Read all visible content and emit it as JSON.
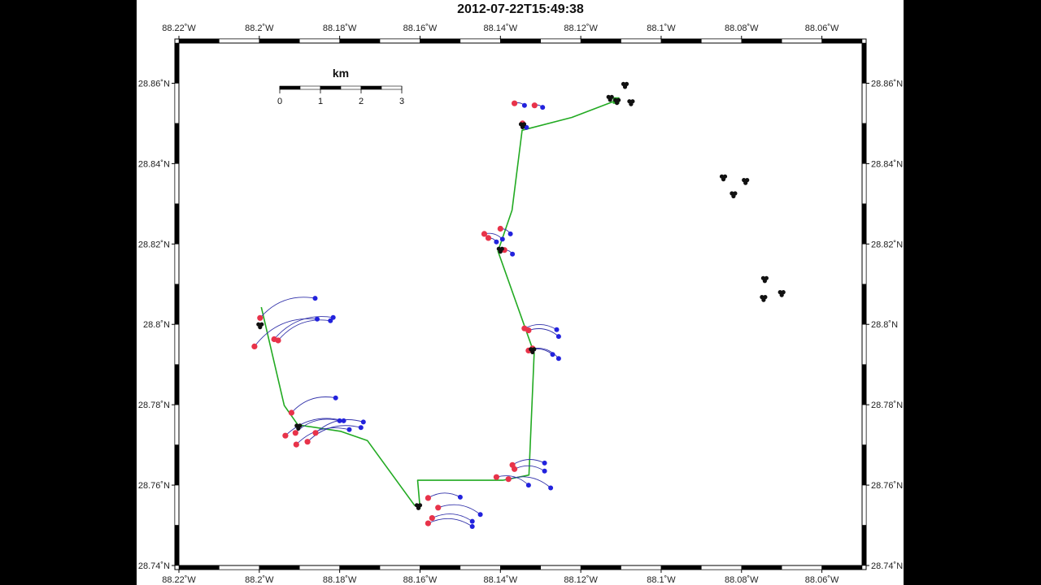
{
  "chart_data": {
    "type": "map",
    "title": "2012-07-22T15:49:38",
    "xlim": [
      -88.22,
      -88.05
    ],
    "ylim": [
      28.74,
      28.87
    ],
    "x_ticks": [
      -88.22,
      -88.2,
      -88.18,
      -88.16,
      -88.14,
      -88.12,
      -88.1,
      -88.08,
      -88.06
    ],
    "y_ticks": [
      28.74,
      28.76,
      28.78,
      28.8,
      28.82,
      28.84,
      28.86
    ],
    "x_tick_labels": [
      "88.22˚W",
      "88.2˚W",
      "88.18˚W",
      "88.16˚W",
      "88.14˚W",
      "88.12˚W",
      "88.1˚W",
      "88.08˚W",
      "88.06˚W"
    ],
    "y_tick_labels": [
      "28.74˚N",
      "28.76˚N",
      "28.78˚N",
      "28.8˚N",
      "28.82˚N",
      "28.84˚N",
      "28.86˚N"
    ],
    "scalebar": {
      "unit": "km",
      "labels": [
        "0",
        "1",
        "2",
        "3"
      ]
    },
    "colors": {
      "ship_track": "#22aa22",
      "drifter_track": "#3333aa",
      "drifter_start": "#e8334a",
      "drifter_end": "#2222dd",
      "undeployed": "#111111"
    },
    "ship_track": [
      [
        -88.1112,
        28.8557
      ],
      [
        -88.1222,
        28.8515
      ],
      [
        -88.1346,
        28.8483
      ],
      [
        -88.1371,
        28.8284
      ],
      [
        -88.1406,
        28.8182
      ],
      [
        -88.1316,
        28.7928
      ],
      [
        -88.1329,
        28.7625
      ],
      [
        -88.1394,
        28.7612
      ],
      [
        -88.1606,
        28.7612
      ],
      [
        -88.16,
        28.7542
      ],
      [
        -88.1614,
        28.755
      ],
      [
        -88.1731,
        28.7711
      ],
      [
        -88.1798,
        28.7734
      ],
      [
        -88.1904,
        28.775
      ],
      [
        -88.1938,
        28.7798
      ],
      [
        -88.1995,
        28.8043
      ]
    ],
    "drifters": [
      {
        "start": [
          -88.1998,
          28.8016
        ],
        "end": [
          -88.1861,
          28.8065
        ]
      },
      {
        "start": [
          -88.1963,
          28.7963
        ],
        "end": [
          -88.1816,
          28.8017
        ]
      },
      {
        "start": [
          -88.1953,
          28.796
        ],
        "end": [
          -88.1823,
          28.8009
        ]
      },
      {
        "start": [
          -88.2012,
          28.7945
        ],
        "end": [
          -88.1856,
          28.8013
        ]
      },
      {
        "start": [
          -88.192,
          28.778
        ],
        "end": [
          -88.181,
          28.7817
        ]
      },
      {
        "start": [
          -88.1935,
          28.7723
        ],
        "end": [
          -88.179,
          28.776
        ]
      },
      {
        "start": [
          -88.191,
          28.773
        ],
        "end": [
          -88.18,
          28.776
        ]
      },
      {
        "start": [
          -88.186,
          28.773
        ],
        "end": [
          -88.1741,
          28.7757
        ]
      },
      {
        "start": [
          -88.188,
          28.7708
        ],
        "end": [
          -88.1747,
          28.7743
        ]
      },
      {
        "start": [
          -88.1908,
          28.7701
        ],
        "end": [
          -88.1776,
          28.7738
        ]
      },
      {
        "start": [
          -88.158,
          28.7568
        ],
        "end": [
          -88.15,
          28.757
        ]
      },
      {
        "start": [
          -88.1555,
          28.7544
        ],
        "end": [
          -88.145,
          28.7527
        ]
      },
      {
        "start": [
          -88.157,
          28.7518
        ],
        "end": [
          -88.147,
          28.751
        ]
      },
      {
        "start": [
          -88.158,
          28.7505
        ],
        "end": [
          -88.147,
          28.7497
        ]
      },
      {
        "start": [
          -88.137,
          28.765
        ],
        "end": [
          -88.129,
          28.7655
        ]
      },
      {
        "start": [
          -88.1365,
          28.764
        ],
        "end": [
          -88.129,
          28.7635
        ]
      },
      {
        "start": [
          -88.141,
          28.762
        ],
        "end": [
          -88.133,
          28.76
        ]
      },
      {
        "start": [
          -88.138,
          28.7615
        ],
        "end": [
          -88.1275,
          28.7593
        ]
      },
      {
        "start": [
          -88.134,
          28.799
        ],
        "end": [
          -88.126,
          28.7987
        ]
      },
      {
        "start": [
          -88.133,
          28.7985
        ],
        "end": [
          -88.1255,
          28.797
        ]
      },
      {
        "start": [
          -88.132,
          28.794
        ],
        "end": [
          -88.1255,
          28.7915
        ]
      },
      {
        "start": [
          -88.133,
          28.7935
        ],
        "end": [
          -88.127,
          28.7925
        ]
      },
      {
        "start": [
          -88.144,
          28.8225
        ],
        "end": [
          -88.1395,
          28.8212
        ]
      },
      {
        "start": [
          -88.143,
          28.8215
        ],
        "end": [
          -88.141,
          28.8205
        ]
      },
      {
        "start": [
          -88.14,
          28.8238
        ],
        "end": [
          -88.1375,
          28.8225
        ]
      },
      {
        "start": [
          -88.139,
          28.8185
        ],
        "end": [
          -88.137,
          28.8175
        ]
      },
      {
        "start": [
          -88.1365,
          28.855
        ],
        "end": [
          -88.134,
          28.8545
        ]
      },
      {
        "start": [
          -88.1315,
          28.8545
        ],
        "end": [
          -88.1295,
          28.854
        ]
      },
      {
        "start": [
          -88.1345,
          28.85
        ],
        "end": [
          -88.1335,
          28.849
        ]
      }
    ],
    "undeployed": [
      [
        -88.109,
        28.8595
      ],
      [
        -88.1075,
        28.8552
      ],
      [
        -88.1127,
        28.8563
      ],
      [
        -88.0845,
        28.8365
      ],
      [
        -88.079,
        28.8356
      ],
      [
        -88.082,
        28.8323
      ],
      [
        -88.0742,
        28.8112
      ],
      [
        -88.0745,
        28.8065
      ],
      [
        -88.07,
        28.8077
      ],
      [
        -88.1998,
        28.7997
      ],
      [
        -88.1903,
        28.7745
      ],
      [
        -88.1604,
        28.7547
      ],
      [
        -88.132,
        28.7935
      ],
      [
        -88.14,
        28.8185
      ],
      [
        -88.1345,
        28.8495
      ],
      [
        -88.111,
        28.8555
      ]
    ]
  }
}
